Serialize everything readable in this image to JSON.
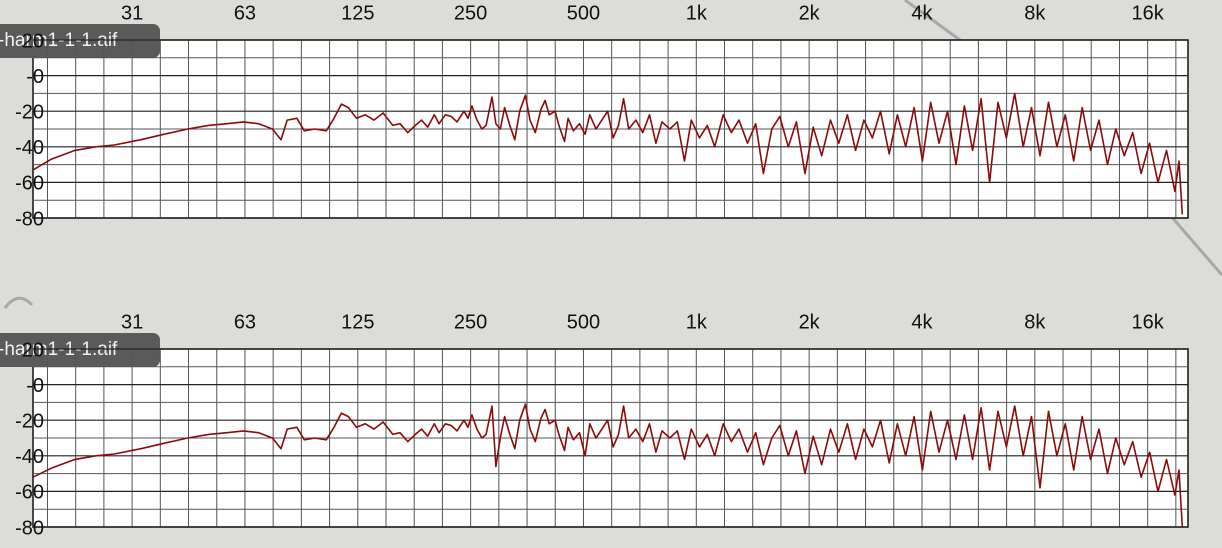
{
  "chart_data": [
    {
      "type": "line",
      "source_label": "-harm1-1-1.aif",
      "color": "#8b0b0b",
      "xscale": "log",
      "grid": true,
      "xlim": [
        17,
        20500
      ],
      "ylim": [
        -80,
        20
      ],
      "xticks": [
        {
          "value": 31.25,
          "label": "31"
        },
        {
          "value": 62.5,
          "label": "63"
        },
        125,
        250,
        500,
        {
          "value": 1000,
          "label": "1k"
        },
        {
          "value": 2000,
          "label": "2k"
        },
        {
          "value": 4000,
          "label": "4k"
        },
        {
          "value": 8000,
          "label": "8k"
        },
        {
          "value": 16000,
          "label": "16k"
        }
      ],
      "yticks": [
        20,
        {
          "value": 0,
          "label": "-0"
        },
        -20,
        -40,
        -60,
        -80
      ],
      "y_minor_ticks": [
        10,
        -10,
        -30,
        -50,
        -70
      ],
      "x": [
        17,
        19,
        22,
        25,
        28,
        33,
        38,
        44,
        50,
        56,
        62,
        68,
        74,
        78,
        81,
        86,
        90,
        96,
        103,
        108,
        113,
        118,
        124,
        131,
        138,
        146,
        155,
        162,
        170,
        178,
        185,
        192,
        200,
        206,
        214,
        222,
        230,
        240,
        246,
        252,
        260,
        268,
        275,
        285,
        292,
        300,
        308,
        318,
        328,
        338,
        350,
        360,
        372,
        385,
        395,
        405,
        420,
        430,
        445,
        455,
        470,
        488,
        505,
        520,
        540,
        560,
        580,
        600,
        620,
        640,
        660,
        690,
        720,
        750,
        780,
        810,
        850,
        890,
        930,
        970,
        1020,
        1070,
        1120,
        1180,
        1240,
        1300,
        1370,
        1440,
        1510,
        1590,
        1670,
        1760,
        1850,
        1950,
        2050,
        2160,
        2280,
        2400,
        2530,
        2660,
        2800,
        2950,
        3100,
        3270,
        3440,
        3620,
        3810,
        4010,
        4220,
        4440,
        4680,
        4930,
        5190,
        5460,
        5750,
        6060,
        6380,
        6720,
        7070,
        7450,
        7840,
        8260,
        8700,
        9160,
        9650,
        10160,
        10700,
        11270,
        11870,
        12500,
        13160,
        13860,
        14600,
        15370,
        16190,
        17050,
        17960,
        18910,
        19400,
        19800
      ],
      "values": [
        -53,
        -47,
        -42,
        -40,
        -39,
        -36,
        -33,
        -30,
        -28,
        -27,
        -26,
        -27,
        -30,
        -36,
        -25,
        -24,
        -31,
        -30,
        -31,
        -24,
        -16,
        -18,
        -24,
        -22,
        -25,
        -21,
        -28,
        -27,
        -32,
        -28,
        -25,
        -29,
        -22,
        -27,
        -22,
        -23,
        -26,
        -20,
        -24,
        -17,
        -25,
        -30,
        -28,
        -12,
        -27,
        -30,
        -18,
        -28,
        -36,
        -20,
        -11,
        -25,
        -32,
        -19,
        -14,
        -22,
        -20,
        -28,
        -37,
        -24,
        -31,
        -27,
        -33,
        -22,
        -30,
        -25,
        -20,
        -35,
        -28,
        -13,
        -30,
        -25,
        -32,
        -22,
        -38,
        -26,
        -30,
        -26,
        -48,
        -25,
        -35,
        -28,
        -40,
        -22,
        -32,
        -25,
        -38,
        -27,
        -55,
        -30,
        -23,
        -40,
        -26,
        -55,
        -29,
        -45,
        -25,
        -38,
        -22,
        -42,
        -25,
        -35,
        -20,
        -44,
        -22,
        -40,
        -18,
        -48,
        -15,
        -38,
        -20,
        -50,
        -17,
        -42,
        -13,
        -60,
        -15,
        -35,
        -10,
        -40,
        -18,
        -45,
        -15,
        -40,
        -22,
        -48,
        -18,
        -42,
        -25,
        -50,
        -30,
        -45,
        -32,
        -55,
        -38,
        -60,
        -42,
        -65,
        -48,
        -78
      ]
    },
    {
      "type": "line",
      "source_label": "-harm1-1-1.aif",
      "color": "#8b0b0b",
      "xscale": "log",
      "grid": true,
      "xlim": [
        17,
        20500
      ],
      "ylim": [
        -80,
        20
      ],
      "xticks": [
        {
          "value": 31.25,
          "label": "31"
        },
        {
          "value": 62.5,
          "label": "63"
        },
        125,
        250,
        500,
        {
          "value": 1000,
          "label": "1k"
        },
        {
          "value": 2000,
          "label": "2k"
        },
        {
          "value": 4000,
          "label": "4k"
        },
        {
          "value": 8000,
          "label": "8k"
        },
        {
          "value": 16000,
          "label": "16k"
        }
      ],
      "yticks": [
        20,
        {
          "value": 0,
          "label": "-0"
        },
        -20,
        -40,
        -60,
        -80
      ],
      "y_minor_ticks": [
        10,
        -10,
        -30,
        -50,
        -70
      ],
      "x": [
        17,
        19,
        22,
        25,
        28,
        33,
        38,
        44,
        50,
        56,
        62,
        68,
        74,
        78,
        81,
        86,
        90,
        96,
        103,
        108,
        113,
        118,
        124,
        131,
        138,
        146,
        155,
        162,
        170,
        178,
        185,
        192,
        200,
        206,
        214,
        222,
        230,
        240,
        246,
        252,
        260,
        268,
        275,
        285,
        292,
        300,
        308,
        318,
        328,
        338,
        350,
        360,
        372,
        385,
        395,
        405,
        420,
        430,
        445,
        455,
        470,
        488,
        505,
        520,
        540,
        560,
        580,
        600,
        620,
        640,
        660,
        690,
        720,
        750,
        780,
        810,
        850,
        890,
        930,
        970,
        1020,
        1070,
        1120,
        1180,
        1240,
        1300,
        1370,
        1440,
        1510,
        1590,
        1670,
        1760,
        1850,
        1950,
        2050,
        2160,
        2280,
        2400,
        2530,
        2660,
        2800,
        2950,
        3100,
        3270,
        3440,
        3620,
        3810,
        4010,
        4220,
        4440,
        4680,
        4930,
        5190,
        5460,
        5750,
        6060,
        6380,
        6720,
        7070,
        7450,
        7840,
        8260,
        8700,
        9160,
        9650,
        10160,
        10700,
        11270,
        11870,
        12500,
        13160,
        13860,
        14600,
        15370,
        16190,
        17050,
        17960,
        18910,
        19400,
        19800
      ],
      "values": [
        -52,
        -47,
        -42,
        -40,
        -39,
        -36,
        -33,
        -30,
        -28,
        -27,
        -26,
        -27,
        -30,
        -36,
        -25,
        -24,
        -31,
        -30,
        -31,
        -24,
        -16,
        -18,
        -24,
        -22,
        -25,
        -21,
        -28,
        -27,
        -32,
        -28,
        -25,
        -29,
        -22,
        -27,
        -22,
        -23,
        -26,
        -20,
        -24,
        -17,
        -25,
        -30,
        -28,
        -12,
        -46,
        -30,
        -18,
        -28,
        -36,
        -20,
        -11,
        -25,
        -32,
        -19,
        -14,
        -22,
        -20,
        -28,
        -37,
        -24,
        -31,
        -27,
        -40,
        -22,
        -30,
        -25,
        -20,
        -35,
        -28,
        -12,
        -30,
        -25,
        -32,
        -22,
        -38,
        -26,
        -30,
        -26,
        -42,
        -25,
        -35,
        -28,
        -40,
        -22,
        -32,
        -25,
        -38,
        -27,
        -45,
        -30,
        -23,
        -40,
        -26,
        -50,
        -29,
        -45,
        -25,
        -38,
        -22,
        -42,
        -25,
        -35,
        -20,
        -44,
        -22,
        -40,
        -18,
        -48,
        -15,
        -38,
        -20,
        -42,
        -17,
        -42,
        -13,
        -48,
        -15,
        -35,
        -12,
        -40,
        -18,
        -58,
        -15,
        -40,
        -22,
        -48,
        -18,
        -42,
        -25,
        -50,
        -30,
        -45,
        -32,
        -52,
        -38,
        -60,
        -42,
        -62,
        -48,
        -80
      ]
    }
  ]
}
